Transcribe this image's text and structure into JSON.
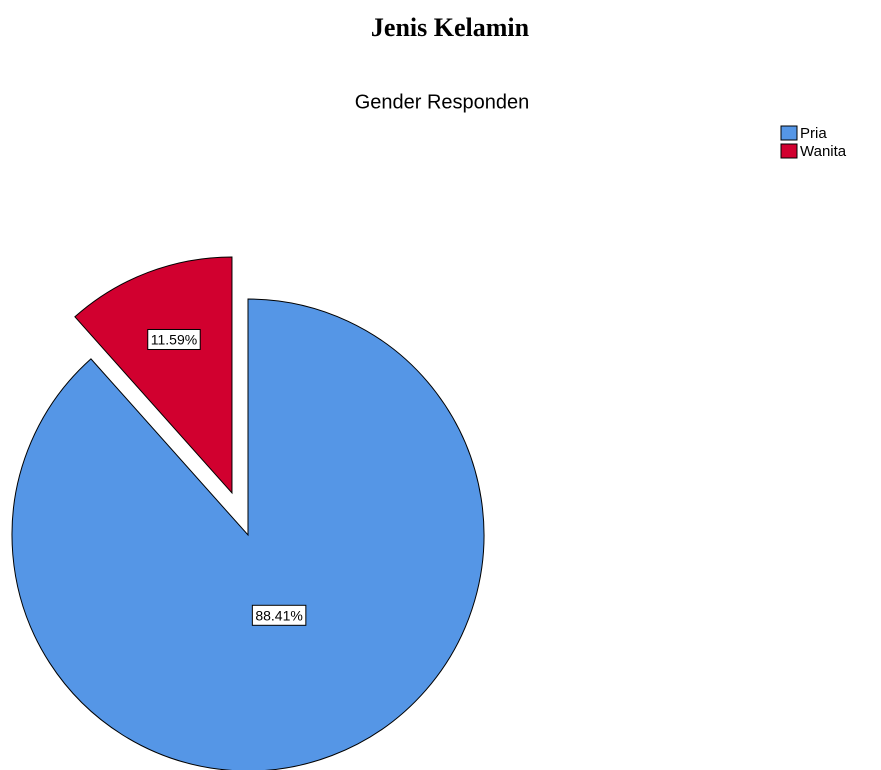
{
  "heading": "Jenis Kelamin",
  "chart_data": {
    "type": "pie",
    "title": "Gender Responden",
    "categories": [
      "Pria",
      "Wanita"
    ],
    "values": [
      88.41,
      11.59
    ],
    "value_labels": [
      "88.41%",
      "11.59%"
    ],
    "colors": [
      "#5596e6",
      "#d1002f"
    ],
    "exploded": [
      false,
      true
    ],
    "legend": "top-right"
  }
}
